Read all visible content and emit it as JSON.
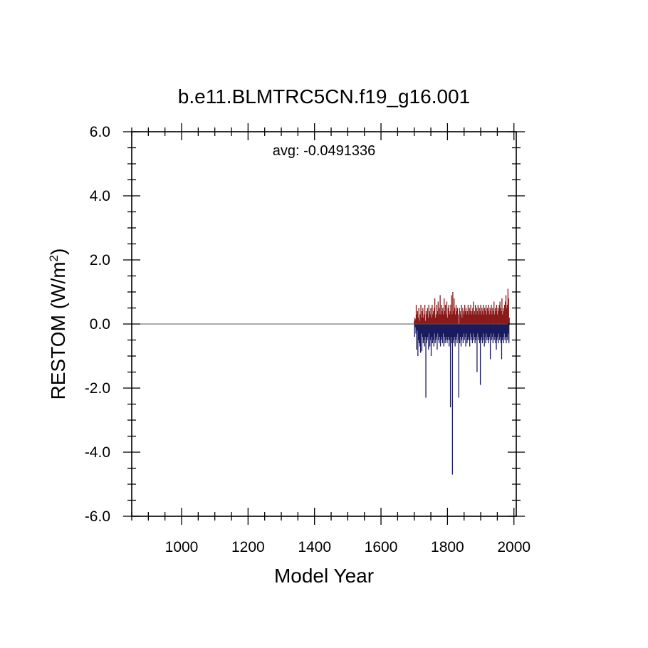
{
  "chart_data": {
    "type": "bar",
    "title": "b.e11.BLMTRC5CN.f19_g16.001",
    "xlabel": "Model Year",
    "ylabel_main": "RESTOM (W/m",
    "ylabel_sup": "2",
    "ylabel_close": ")",
    "annotation": "avg: -0.0491336",
    "xlim": [
      850,
      2007
    ],
    "ylim": [
      -6.0,
      6.0
    ],
    "x_ticks": [
      1000,
      1200,
      1400,
      1600,
      1800,
      2000
    ],
    "x_tick_labels": [
      "1000",
      "1200",
      "1400",
      "1600",
      "1800",
      "2000"
    ],
    "y_ticks": [
      -6.0,
      -4.0,
      -2.0,
      0.0,
      2.0,
      4.0,
      6.0
    ],
    "y_tick_labels": [
      "-6.0",
      "-4.0",
      "-2.0",
      "0.0",
      "2.0",
      "4.0",
      "6.0"
    ],
    "zero_line": 0.0,
    "positive_color": "#8b1a1a",
    "negative_color": "#1a1a5e",
    "series": [
      {
        "name": "RESTOM",
        "x_start": 1700,
        "values": [
          0.1,
          -0.4,
          0.2,
          -0.1,
          0.15,
          -0.3,
          0.6,
          -0.8,
          0.3,
          -0.2,
          0.4,
          -1.0,
          0.2,
          -0.5,
          0.5,
          -0.6,
          0.1,
          -0.7,
          0.3,
          -0.9,
          0.6,
          -0.3,
          0.2,
          -0.85,
          0.4,
          -0.4,
          0.5,
          -0.6,
          0.2,
          -0.5,
          0.3,
          -0.7,
          0.6,
          -0.4,
          0.1,
          -2.3,
          0.4,
          -0.6,
          0.3,
          -0.5,
          0.5,
          -0.4,
          0.2,
          -0.8,
          0.6,
          -0.3,
          0.4,
          -0.7,
          0.3,
          -0.5,
          0.5,
          -1.0,
          0.2,
          -0.4,
          0.6,
          -0.6,
          0.3,
          -0.5,
          0.4,
          -0.7,
          0.5,
          -0.3,
          0.8,
          -0.6,
          0.2,
          -0.5,
          0.3,
          -0.4,
          0.6,
          -0.8,
          0.4,
          -0.3,
          0.7,
          -0.5,
          0.3,
          -0.6,
          0.5,
          -0.4,
          0.9,
          -0.7,
          0.3,
          -0.5,
          0.6,
          -0.4,
          0.4,
          -0.6,
          0.5,
          -0.3,
          0.3,
          -0.7,
          0.8,
          -0.4,
          0.4,
          -0.6,
          0.6,
          -0.5,
          0.3,
          -0.4,
          0.7,
          -0.6,
          0.2,
          -0.5,
          0.5,
          -0.4,
          0.6,
          -0.7,
          0.3,
          -0.5,
          0.4,
          -2.6,
          0.6,
          -0.4,
          0.9,
          -0.6,
          0.3,
          -4.7,
          1.0,
          -0.5,
          0.4,
          -0.6,
          0.8,
          -0.4,
          0.5,
          -0.7,
          0.3,
          -0.5,
          0.6,
          -0.4,
          0.4,
          -0.6,
          0.5,
          -0.3,
          0.3,
          -0.5,
          -2.3,
          -0.4,
          0.5,
          -0.6,
          0.4,
          -0.4,
          0.3,
          -0.7,
          0.6,
          -0.5,
          0.2,
          -0.4,
          0.5,
          -0.6,
          0.4,
          -0.3,
          0.3,
          -0.5,
          0.6,
          -0.4,
          0.4,
          -0.7,
          0.5,
          -0.3,
          0.3,
          -0.6,
          0.4,
          -0.5,
          0.6,
          -0.4,
          0.3,
          -0.5,
          0.5,
          -0.7,
          0.4,
          -0.3,
          0.6,
          -0.5,
          0.3,
          -0.4,
          0.4,
          -0.6,
          0.5,
          -0.3,
          0.7,
          -0.5,
          0.3,
          -0.4,
          0.4,
          -0.6,
          0.6,
          -0.5,
          0.3,
          -0.4,
          0.5,
          -1.5,
          0.4,
          -0.3,
          0.6,
          -0.5,
          0.3,
          -0.4,
          0.5,
          -0.6,
          0.4,
          -1.9,
          0.6,
          -0.5,
          0.3,
          -0.4,
          0.5,
          -0.6,
          0.4,
          -0.3,
          0.6,
          -0.5,
          0.3,
          -0.7,
          0.5,
          -0.4,
          0.4,
          -0.6,
          0.6,
          -0.3,
          0.3,
          -0.5,
          0.5,
          -0.4,
          0.4,
          -0.6,
          0.6,
          -0.5,
          0.3,
          -0.4,
          0.5,
          -1.1,
          0.4,
          -0.3,
          0.6,
          -0.5,
          0.3,
          -0.4,
          0.5,
          -0.6,
          0.4,
          -0.3,
          0.7,
          -0.5,
          0.3,
          -0.4,
          0.5,
          -0.6,
          0.4,
          -0.8,
          0.6,
          -0.5,
          0.3,
          -0.4,
          0.5,
          -0.6,
          0.4,
          -0.3,
          0.6,
          -0.5,
          0.7,
          -0.4,
          0.5,
          -0.6,
          0.4,
          -1.1,
          0.8,
          -0.5,
          0.3,
          -0.4,
          0.5,
          -0.6,
          0.4,
          -0.3,
          0.6,
          -0.5,
          0.7,
          -0.4,
          0.9,
          -0.6,
          0.5,
          -0.4,
          0.6,
          -0.5,
          1.1,
          -0.3,
          0.8,
          -0.6,
          0.2
        ]
      }
    ]
  }
}
